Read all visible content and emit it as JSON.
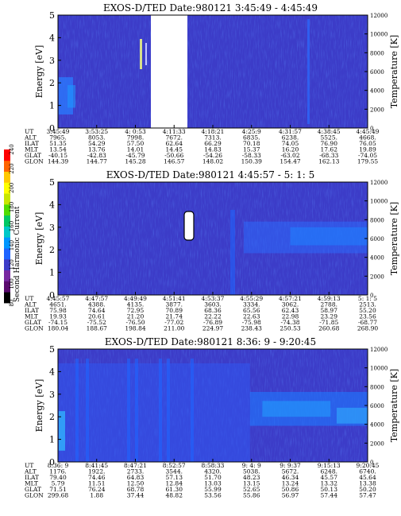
{
  "chart_data": [
    {
      "type": "heatmap",
      "title": "EXOS-D/TED   Date:980121  3:45:49 - 4:45:49",
      "ylabel": "Energy [eV]",
      "ylabel_right": "Temperature [K]",
      "ylim": [
        0,
        5
      ],
      "ylim_right": [
        0,
        12000
      ],
      "yticks": [
        "0",
        "1",
        "2",
        "3",
        "4",
        "5"
      ],
      "yticks_right": [
        "0",
        "2000",
        "4000",
        "6000",
        "8000",
        "10000",
        "12000"
      ],
      "row_labels": [
        "UT",
        "ALT",
        "ILAT",
        "MLT",
        "GLAT",
        "GLON"
      ],
      "columns": [
        [
          "3:45:49",
          "7965.",
          "51.35",
          "13.54",
          "-40.15",
          "144.39"
        ],
        [
          "3:53:25",
          "8053.",
          "54.29",
          "13.76",
          "-42.83",
          "144.77"
        ],
        [
          "4: 0:53",
          "7998.",
          "57.50",
          "14.01",
          "-45.79",
          "145.28"
        ],
        [
          "4:11:33",
          "7672.",
          "62.64",
          "14.45",
          "-50.66",
          "146.57"
        ],
        [
          "4:18:21",
          "7313.",
          "66.29",
          "14.83",
          "-54.26",
          "148.02"
        ],
        [
          "4:25:9",
          "6835.",
          "70.18",
          "15.37",
          "-58.33",
          "150.39"
        ],
        [
          "4:31:57",
          "6238.",
          "74.05",
          "16.20",
          "-63.02",
          "154.47"
        ],
        [
          "4:38:45",
          "5525.",
          "76.90",
          "17.62",
          "-68.33",
          "162.13"
        ],
        [
          "4:45:49",
          "4668.",
          "76.05",
          "19.89",
          "-74.05",
          "179.55"
        ]
      ],
      "gap_utc": "4:05 - 4:11",
      "background": "#3c3cc8"
    },
    {
      "type": "heatmap",
      "title": "EXOS-D/TED   Date:980121  4:45:57 - 5: 1: 5",
      "ylabel": "Energy [eV]",
      "ylabel_right": "Temperature [K]",
      "ylim": [
        0,
        5
      ],
      "ylim_right": [
        0,
        12000
      ],
      "yticks": [
        "0",
        "1",
        "2",
        "3",
        "4",
        "5"
      ],
      "yticks_right": [
        "0",
        "2000",
        "4000",
        "6000",
        "8000",
        "10000",
        "12000"
      ],
      "row_labels": [
        "UT",
        "ALT",
        "ILAT",
        "MLT",
        "GLAT",
        "GLON"
      ],
      "columns": [
        [
          "4:45:57",
          "4651.",
          "75.98",
          "19.93",
          "-74.15",
          "180.04"
        ],
        [
          "4:47:57",
          "4388.",
          "74.64",
          "20.61",
          "-75.52",
          "188.67"
        ],
        [
          "4:49:49",
          "4135.",
          "72.95",
          "21.20",
          "-76.50",
          "198.84"
        ],
        [
          "4:51:41",
          "3877.",
          "70.89",
          "21.74",
          "-77.02",
          "211.00"
        ],
        [
          "4:53:37",
          "3603.",
          "68.36",
          "22.22",
          "-76.89",
          "224.97"
        ],
        [
          "4:55:29",
          "3334.",
          "65.56",
          "22.63",
          "-75.98",
          "238.43"
        ],
        [
          "4:57:21",
          "3062.",
          "62.43",
          "22.98",
          "-74.38",
          "250.53"
        ],
        [
          "4:59:13",
          "2788.",
          "58.97",
          "23.29",
          "-71.85",
          "260.68"
        ],
        [
          "5: 1: 5",
          "2513.",
          "55.20",
          "23.56",
          "-68.77",
          "268.90"
        ]
      ],
      "background": "#3c3cc8"
    },
    {
      "type": "heatmap",
      "title": "EXOS-D/TED   Date:980121  8:36: 9 - 9:20:45",
      "ylabel": "Energy [eV]",
      "ylabel_right": "Temperature [K]",
      "ylim": [
        0,
        5
      ],
      "ylim_right": [
        0,
        12000
      ],
      "yticks": [
        "0",
        "1",
        "2",
        "3",
        "4",
        "5"
      ],
      "yticks_right": [
        "0",
        "2000",
        "4000",
        "6000",
        "8000",
        "10000",
        "12000"
      ],
      "row_labels": [
        "UT",
        "ALT",
        "ILAT",
        "MLT",
        "GLAT",
        "GLON"
      ],
      "columns": [
        [
          "8:36: 9",
          "1176.",
          "79.40",
          "5.79",
          "71.51",
          "299.68"
        ],
        [
          "8:41:45",
          "1922.",
          "74.46",
          "11.51",
          "76.24",
          "1.88"
        ],
        [
          "8:47:21",
          "2733.",
          "64.83",
          "12.50",
          "68.78",
          "37.44"
        ],
        [
          "8:52:57",
          "3544.",
          "57.13",
          "12.84",
          "61.30",
          "48.82"
        ],
        [
          "8:58:33",
          "4320.",
          "51.70",
          "13.03",
          "55.99",
          "53.56"
        ],
        [
          "9: 4: 9",
          "5038.",
          "48.23",
          "13.15",
          "52.65",
          "55.86"
        ],
        [
          "9: 9:37",
          "5672.",
          "46.34",
          "13.24",
          "50.86",
          "56.97"
        ],
        [
          "9:15:13",
          "6248.",
          "45.57",
          "13.32",
          "50.13",
          "57.44"
        ],
        [
          "9:20:45",
          "6740.",
          "45.64",
          "13.38",
          "50.20",
          "57.47"
        ]
      ],
      "background": "#3c3cc8"
    }
  ],
  "colorbar": {
    "label": "Second Harmonic Current",
    "ticks": [
      "80",
      "100",
      "120",
      "140",
      "160",
      "180",
      "200",
      "220",
      "240"
    ],
    "colors": [
      "#000000",
      "#5a0a6e",
      "#7828a0",
      "#3c3cc8",
      "#1e64ff",
      "#0096ff",
      "#00c8c8",
      "#00c864",
      "#50dc00",
      "#c8e600",
      "#ffff00",
      "#ffc800",
      "#ff6400",
      "#ff0000"
    ]
  }
}
